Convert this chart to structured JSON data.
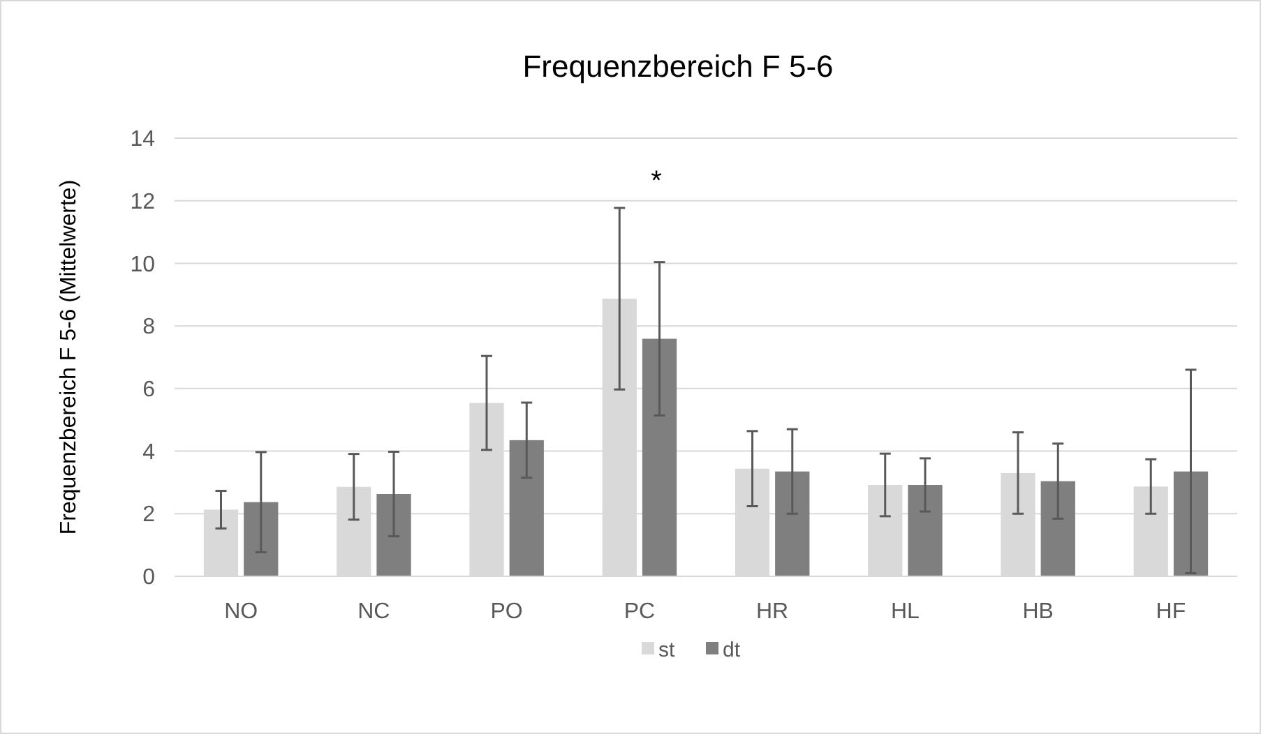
{
  "chart_data": {
    "type": "bar",
    "title": "Frequenzbereich F 5-6",
    "ylabel": "Frequenzbereich F 5-6 (Mittelwerte)",
    "categories": [
      "NO",
      "NC",
      "PO",
      "PC",
      "HR",
      "HL",
      "HB",
      "HF"
    ],
    "series": [
      {
        "name": "st",
        "color": "#d9d9d9",
        "values": [
          2.13,
          2.86,
          5.54,
          8.87,
          3.44,
          2.92,
          3.3,
          2.87
        ],
        "errors": [
          0.6,
          1.05,
          1.5,
          2.9,
          1.2,
          1.0,
          1.3,
          0.87
        ]
      },
      {
        "name": "dt",
        "color": "#7f7f7f",
        "values": [
          2.37,
          2.63,
          4.35,
          7.59,
          3.35,
          2.92,
          3.04,
          3.35
        ],
        "errors": [
          1.6,
          1.35,
          1.2,
          2.45,
          1.35,
          0.85,
          1.2,
          3.25
        ]
      }
    ],
    "ylim": [
      0,
      14
    ],
    "yticks": [
      0,
      2,
      4,
      6,
      8,
      10,
      12,
      14
    ],
    "grid": "y",
    "legend": "bottom",
    "annotations": [
      "*"
    ]
  }
}
